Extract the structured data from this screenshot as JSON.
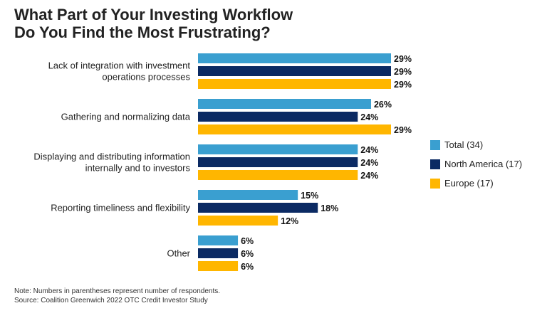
{
  "title_lines": [
    "What Part of Your Investing Workflow",
    "Do You Find the Most Frustrating?"
  ],
  "notes": [
    "Note: Numbers in parentheses represent number of respondents.",
    "Source: Coalition Greenwich 2022 OTC Credit Investor Study"
  ],
  "chart_data": {
    "type": "bar",
    "orientation": "horizontal",
    "title": "What Part of Your Investing Workflow Do You Find the Most Frustrating?",
    "categories": [
      [
        "Lack of integration with investment",
        "operations processes"
      ],
      [
        "Gathering and normalizing data"
      ],
      [
        "Displaying and distributing information",
        "internally and to investors"
      ],
      [
        "Reporting timeliness and flexibility"
      ],
      [
        "Other"
      ]
    ],
    "value_format": "{v}%",
    "xlim": [
      0,
      29
    ],
    "grid": false,
    "legend_position": "right",
    "series": [
      {
        "name": "Total (34)",
        "color": "#3a9fd0",
        "values": [
          29,
          26,
          24,
          15,
          6
        ]
      },
      {
        "name": "North America (17)",
        "color": "#0b2a63",
        "values": [
          29,
          24,
          24,
          18,
          6
        ]
      },
      {
        "name": "Europe (17)",
        "color": "#ffb600",
        "values": [
          29,
          29,
          24,
          12,
          6
        ]
      }
    ]
  }
}
